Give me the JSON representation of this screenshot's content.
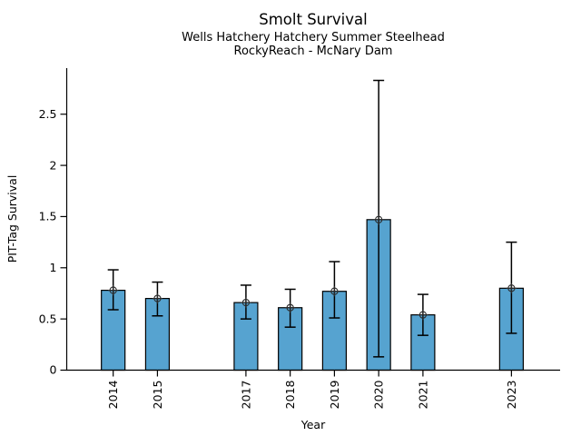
{
  "figure": {
    "title": "Smolt Survival",
    "subtitle_line1": "Wells Hatchery Hatchery Summer Steelhead",
    "subtitle_line2": "RockyReach - McNary Dam"
  },
  "chart_data": {
    "type": "bar",
    "title": "Smolt Survival",
    "subtitle": [
      "Wells Hatchery Hatchery Summer Steelhead",
      "RockyReach - McNary Dam"
    ],
    "xlabel": "Year",
    "ylabel": "PIT-Tag Survival",
    "categories": [
      "2014",
      "2015",
      "2017",
      "2018",
      "2019",
      "2020",
      "2021",
      "2023"
    ],
    "x": [
      2014,
      2015,
      2017,
      2018,
      2019,
      2020,
      2021,
      2023
    ],
    "values": [
      0.78,
      0.7,
      0.66,
      0.61,
      0.77,
      1.47,
      0.54,
      0.8
    ],
    "error_low": [
      0.59,
      0.53,
      0.5,
      0.42,
      0.51,
      0.13,
      0.34,
      0.36
    ],
    "error_high": [
      0.98,
      0.86,
      0.83,
      0.79,
      1.06,
      2.83,
      0.74,
      1.25
    ],
    "ytick_values": [
      0,
      0.5,
      1,
      1.5,
      2,
      2.5
    ],
    "ytick_labels": [
      "0",
      "0.5",
      "1",
      "1.5",
      "2",
      "2.5"
    ],
    "ylim": [
      0,
      2.95
    ],
    "xlim": [
      2012.95,
      2024.1
    ],
    "grid": false,
    "legend": null,
    "missing_years": [
      2016,
      2022
    ],
    "marker": "circle-plus",
    "colors": {
      "bar_fill": "#56a3d0",
      "bar_edge": "#000000",
      "error_bar": "#000000",
      "marker_edge": "#2b2b2b",
      "axis": "#000000",
      "text": "#000000",
      "background": "#ffffff"
    }
  }
}
